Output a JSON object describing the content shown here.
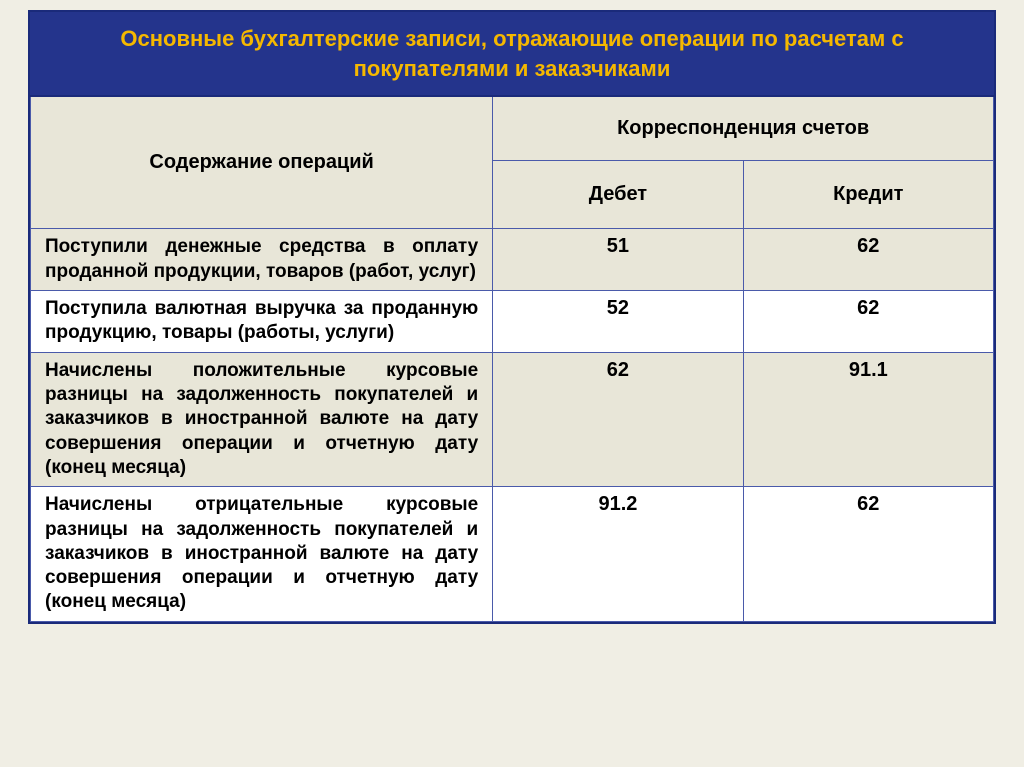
{
  "title": "Основные бухгалтерские записи, отражающие операции по расчетам с покупателями и заказчиками",
  "columns": {
    "operations": "Содержание операций",
    "correspondence": "Корреспонденция счетов",
    "debit": "Дебет",
    "credit": "Кредит"
  },
  "rows": [
    {
      "desc": "Поступили денежные средства в оплату проданной продукции, товаров (работ, услуг)",
      "debit": "51",
      "credit": "62",
      "alt": true
    },
    {
      "desc": "Поступила валютная выручка за проданную продукцию, товары (работы, услуги)",
      "debit": "52",
      "credit": "62",
      "alt": false
    },
    {
      "desc": "Начислены положительные курсовые разницы на задолженность покупателей и заказчиков в иностранной валюте на дату совершения операции и отчетную дату (конец месяца)",
      "debit": "62",
      "credit": "91.1",
      "alt": true
    },
    {
      "desc": "Начислены отрицательные курсовые разницы на задолженность покупателей и заказчиков в иностранной валюте на дату совершения операции и отчетную дату (конец месяца)",
      "debit": "91.2",
      "credit": "62",
      "alt": false
    }
  ],
  "style": {
    "title_bg": "#24348c",
    "title_color": "#f5b800",
    "header_bg": "#e8e6d8",
    "alt_row_bg": "#e8e6d8",
    "border_color": "#4a5aaa",
    "page_bg": "#f0eee4",
    "title_fontsize": 22,
    "header_fontsize": 20,
    "cell_fontsize": 19
  }
}
